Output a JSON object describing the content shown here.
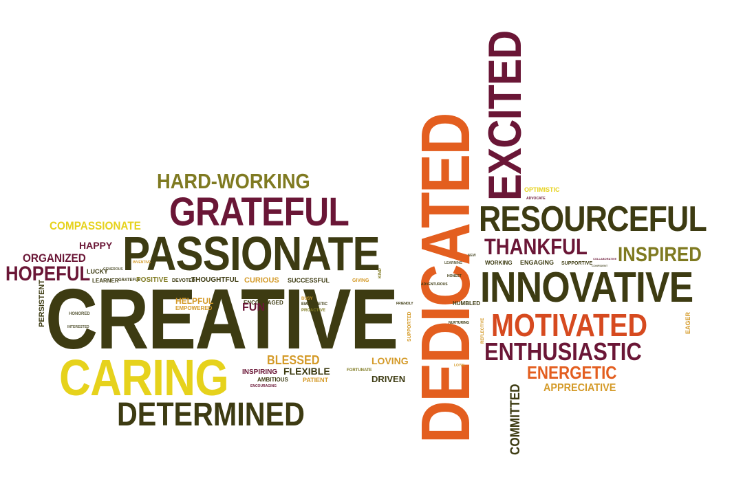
{
  "colors": {
    "dark_olive": "#3d3b12",
    "maroon": "#6a1636",
    "orange": "#e35e1f",
    "yellow": "#e6d21c",
    "olive": "#7f7a21",
    "gold": "#d49a28",
    "red_orange": "#d64a1f"
  },
  "words": {
    "dedicated": "DEDICATED",
    "excited": "EXCITED",
    "hard_working": "HARD-WORKING",
    "grateful": "GRATEFUL",
    "compassionate": "COMPASSIONATE",
    "passionate": "PASSIONATE",
    "happy": "HAPPY",
    "organized": "ORGANIZED",
    "hopeful": "HOPEFUL",
    "creative": "CREATIVE",
    "caring": "CARING",
    "determined": "DETERMINED",
    "persistent": "PERSISTENT",
    "honored": "HONORED",
    "lucky": "LUCKY",
    "learner": "LEARNER",
    "grateful_small": "GRATEFUL",
    "positive": "POSITIVE",
    "devoted": "DEVOTED",
    "thoughtful": "THOUGHTFUL",
    "curious": "CURIOUS",
    "successful": "SUCCESSFUL",
    "giving": "GIVING",
    "kind": "KIND",
    "helpful": "HELPFUL",
    "empowered": "EMPOWERED",
    "encouraged": "ENCOURAGED",
    "fun": "FUN",
    "busy": "BUSY",
    "empathetic": "EMPATHETIC",
    "proactive": "PROACTIVE",
    "blessed": "BLESSED",
    "inspiring": "INSPIRING",
    "flexible": "FLEXIBLE",
    "ambitious": "AMBITIOUS",
    "patient": "PATIENT",
    "encouraging": "ENCOURAGING",
    "loving": "LOVING",
    "fortunate": "FORTUNATE",
    "driven": "DRIVEN",
    "supported": "SUPPORTED",
    "inventive": "INVENTIVE",
    "generous": "GENEROUS",
    "interested": "INTERESTED",
    "resourceful": "RESOURCEFUL",
    "thankful": "THANKFUL",
    "inspired": "INSPIRED",
    "optimistic": "OPTIMISTIC",
    "advocate": "ADVOCATE",
    "working": "WORKING",
    "engaging": "ENGAGING",
    "supportive": "SUPPORTIVE",
    "innovative": "INNOVATIVE",
    "motivated": "MOTIVATED",
    "eager": "EAGER",
    "enthusiastic": "ENTHUSIASTIC",
    "committed": "COMMITTED",
    "energetic": "ENERGETIC",
    "appreciative": "APPRECIATIVE",
    "humbled": "HUMBLED",
    "adventurous": "ADVENTUROUS",
    "honest": "HONEST",
    "friendly": "FRIENDLY",
    "nurturing": "NURTURING",
    "reflective": "REFLECTIVE",
    "loyal": "LOYAL",
    "new": "NEW",
    "learning": "LEARNING",
    "collaborative": "COLLABORATIVE",
    "confident": "CONFIDENT"
  }
}
